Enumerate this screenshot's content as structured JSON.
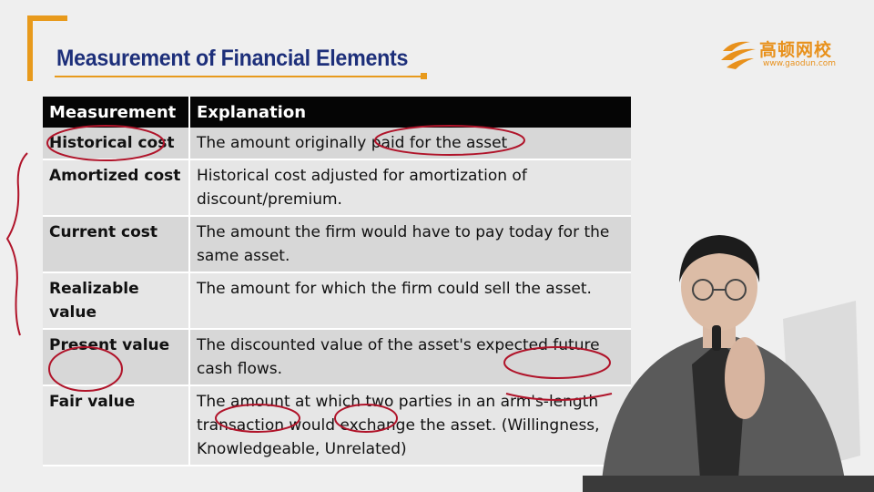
{
  "slide": {
    "title": "Measurement of Financial Elements",
    "logo": {
      "brand_cn": "高顿网校",
      "url": "www.gaodun.com"
    }
  },
  "table": {
    "headers": [
      "Measurement",
      "Explanation"
    ],
    "rows": [
      {
        "measurement": "Historical cost",
        "explanation": "The amount originally paid for the asset"
      },
      {
        "measurement": "Amortized cost",
        "explanation": "Historical cost adjusted for amortization of discount/premium."
      },
      {
        "measurement": "Current cost",
        "explanation": "The amount the firm would have to pay today for the same asset."
      },
      {
        "measurement": "Realizable value",
        "explanation": "The amount for which the firm could sell the asset."
      },
      {
        "measurement": "Present value",
        "explanation": "The discounted value of the asset's expected future cash flows."
      },
      {
        "measurement": "Fair value",
        "explanation": "The amount at which two parties in an arm's-length transaction would exchange the asset.  (Willingness, Knowledgeable, Unrelated)"
      }
    ]
  },
  "colors": {
    "title": "#1d2f7a",
    "accent": "#e89a1c",
    "annotation": "#b0142a",
    "header_bg": "#050505"
  }
}
